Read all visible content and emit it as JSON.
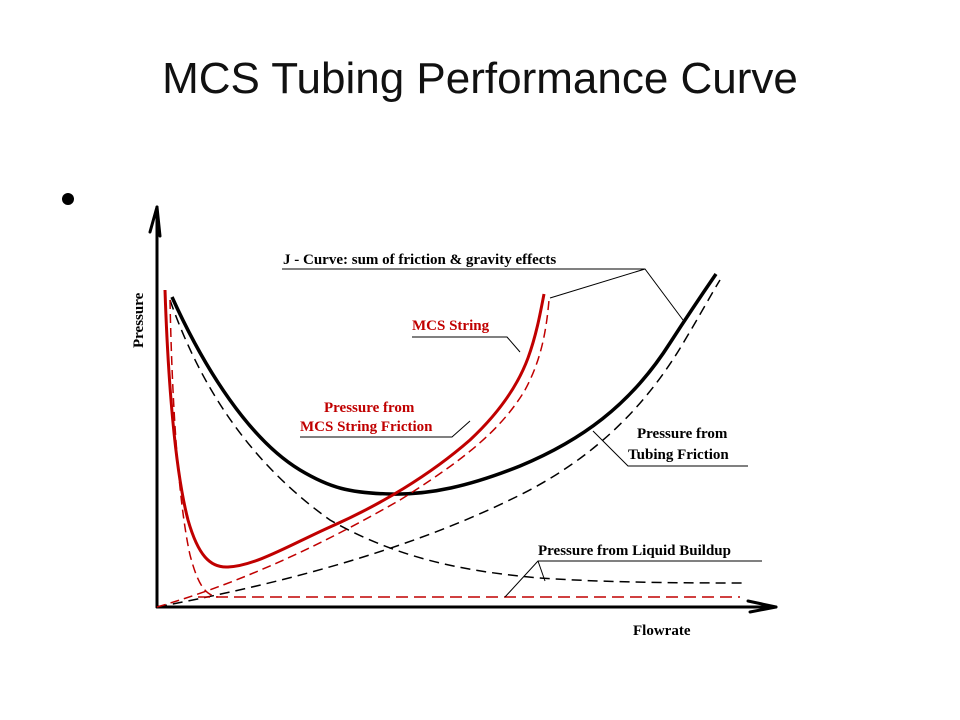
{
  "slide": {
    "title": "MCS Tubing Performance Curve"
  },
  "diagram": {
    "y_axis_label": "Pressure",
    "x_axis_label": "Flowrate",
    "labels": {
      "j_curve": "J - Curve: sum of friction & gravity effects",
      "mcs_string": "MCS String",
      "mcs_friction_line1": "Pressure from",
      "mcs_friction_line2": "MCS String Friction",
      "tubing_friction_line1": "Pressure from",
      "tubing_friction_line2": "Tubing Friction",
      "liquid_buildup": "Pressure from Liquid Buildup"
    },
    "colors": {
      "black_curves": "#000000",
      "red_curves": "#c00000",
      "red_labels": "#c00000",
      "leader_lines": "#000000"
    }
  }
}
